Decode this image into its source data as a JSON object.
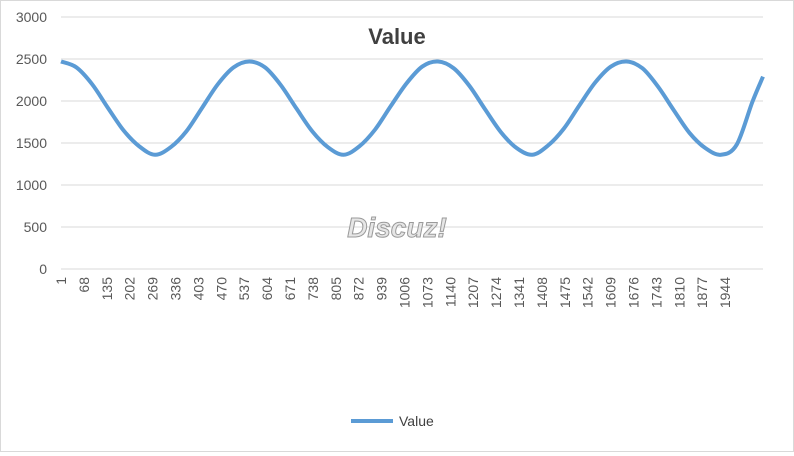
{
  "chart_data": {
    "type": "line",
    "title": "Value",
    "xlabel": "",
    "ylabel": "",
    "ylim": [
      0,
      3000
    ],
    "yticks": [
      "0",
      "500",
      "1000",
      "1500",
      "2000",
      "2500",
      "3000"
    ],
    "xlim": [
      1,
      2055
    ],
    "xticks": [
      "1",
      "68",
      "135",
      "202",
      "269",
      "336",
      "403",
      "470",
      "537",
      "604",
      "671",
      "738",
      "805",
      "872",
      "939",
      "1006",
      "1073",
      "1140",
      "1207",
      "1274",
      "1341",
      "1408",
      "1475",
      "1542",
      "1609",
      "1676",
      "1743",
      "1810",
      "1877",
      "1944"
    ],
    "grid": true,
    "legend": "bottom",
    "series": [
      {
        "name": "Value",
        "color": "#5b9bd5",
        "x": [
          1,
          46,
          92,
          138,
          184,
          230,
          276,
          322,
          368,
          414,
          460,
          506,
          552,
          598,
          644,
          690,
          736,
          782,
          828,
          874,
          920,
          966,
          1012,
          1058,
          1104,
          1150,
          1196,
          1242,
          1288,
          1334,
          1380,
          1426,
          1472,
          1518,
          1564,
          1610,
          1656,
          1702,
          1748,
          1794,
          1840,
          1886,
          1932,
          1978,
          2024,
          2055
        ],
        "y": [
          2470,
          2400,
          2200,
          1920,
          1650,
          1460,
          1360,
          1450,
          1640,
          1920,
          2200,
          2400,
          2470,
          2400,
          2190,
          1910,
          1640,
          1450,
          1360,
          1460,
          1660,
          1940,
          2210,
          2410,
          2470,
          2390,
          2180,
          1900,
          1630,
          1440,
          1360,
          1470,
          1670,
          1950,
          2220,
          2410,
          2470,
          2390,
          2170,
          1890,
          1620,
          1440,
          1360,
          1480,
          1990,
          2290
        ]
      }
    ],
    "watermark": "Discuz!"
  }
}
